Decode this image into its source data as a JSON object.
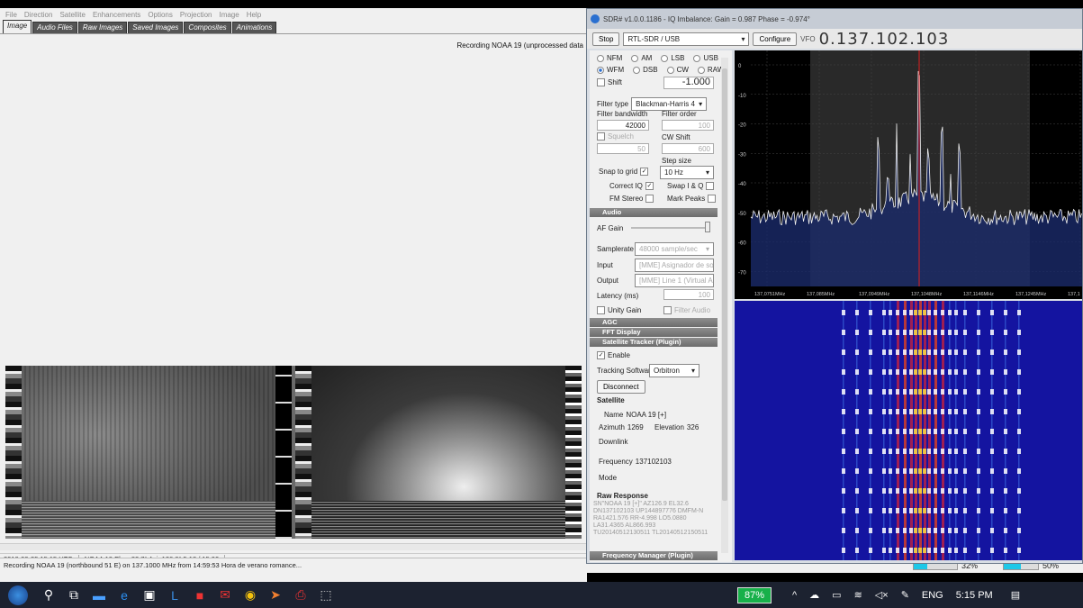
{
  "wx": {
    "menu": [
      "File",
      "Direction",
      "Satellite",
      "Enhancements",
      "Options",
      "Projection",
      "Image",
      "Help"
    ],
    "tabs": [
      "Image",
      "Audio Files",
      "Raw Images",
      "Saved Images",
      "Composites",
      "Animations"
    ],
    "status": "Recording NOAA 19 (unprocessed data",
    "info": [
      "2018-09-25  15:15 UTC",
      "NOAA 19  Elev: 32.7°  Azi: 126.8°  5:18 / 15:00"
    ],
    "recording": "Recording NOAA 19 (northbound 51 E) on 137.1000 MHz from 14:59:53 Hora de verano romance...",
    "progress": [
      {
        "label": "32%",
        "value": 0.32
      },
      {
        "label": "50%",
        "value": 0.5
      }
    ]
  },
  "sdr": {
    "title": "SDR# v1.0.0.1186 - IQ Imbalance: Gain = 0.987 Phase = -0.974°",
    "stop": "Stop",
    "device": "RTL-SDR / USB",
    "configure": "Configure",
    "vfo_label": "VFO",
    "vfo": "0.137.102.103",
    "modes_row1": [
      "NFM",
      "AM",
      "LSB",
      "USB"
    ],
    "modes_row2": [
      "WFM",
      "DSB",
      "CW",
      "RAW"
    ],
    "shift_label": "Shift",
    "shift_value": "-1.000",
    "filter_type_label": "Filter type",
    "filter_type": "Blackman-Harris 4",
    "filter_bw_label": "Filter bandwidth",
    "filter_bw": "42000",
    "filter_order_label": "Filter order",
    "filter_order": "100",
    "squelch_label": "Squelch",
    "squelch_value": "50",
    "cw_shift_label": "CW Shift",
    "cw_shift": "600",
    "step_label": "Step size",
    "snap_label": "Snap to grid",
    "step_value": "10 Hz",
    "correct_iq": "Correct IQ",
    "swap_iq": "Swap I & Q",
    "fm_stereo": "FM Stereo",
    "mark_peaks": "Mark Peaks",
    "audio_section": "Audio",
    "af_gain": "AF Gain",
    "samplerate_label": "Samplerate",
    "samplerate": "48000 sample/sec",
    "input_label": "Input",
    "input": "[MME] Asignador de so...",
    "output_label": "Output",
    "output": "[MME] Line 1 (Virtual A...",
    "latency_label": "Latency (ms)",
    "latency": "100",
    "unity_gain": "Unity Gain",
    "filter_audio": "Filter Audio",
    "agc": "AGC",
    "fft_display": "FFT Display",
    "sat_tracker": "Satellite Tracker (Plugin)",
    "enable": "Enable",
    "tracking_sw_label": "Tracking Software",
    "tracking_sw": "Orbitron",
    "disconnect": "Disconnect",
    "satellite_hdr": "Satellite",
    "name_label": "Name",
    "name_value": "NOAA 19 [+]",
    "azimuth_label": "Azimuth",
    "azimuth": "1269",
    "elevation_label": "Elevation",
    "elevation": "326",
    "downlink_hdr": "Downlink",
    "freq_label": "Frequency",
    "freq_value": "137102103",
    "mode_label": "Mode",
    "raw_hdr": "Raw Response",
    "raw_lines": [
      "SN\"NOAA 19 [+]\" AZ126.9 EL32.6",
      "DN137102103 UP144897776 DMFM-N",
      "RA1421.576 RR-4.998 LO5.0880",
      "LA31.4365 AL866.993",
      "TU20140512130511 TL20140512150511"
    ],
    "freq_manager": "Frequency Manager (Plugin)"
  },
  "spectrum": {
    "y_ticks": [
      "0",
      "-10",
      "-20",
      "-30",
      "-40",
      "-50",
      "-60",
      "-70"
    ],
    "x_ticks": [
      "137,0751MHz",
      "137,085MHz",
      "137,0949MHz",
      "137,1048MHz",
      "137,1146MHz",
      "137,1245MHz",
      "137,1"
    ]
  },
  "taskbar": {
    "battery": "87%",
    "lang": "ENG",
    "time": "5:15 PM"
  }
}
